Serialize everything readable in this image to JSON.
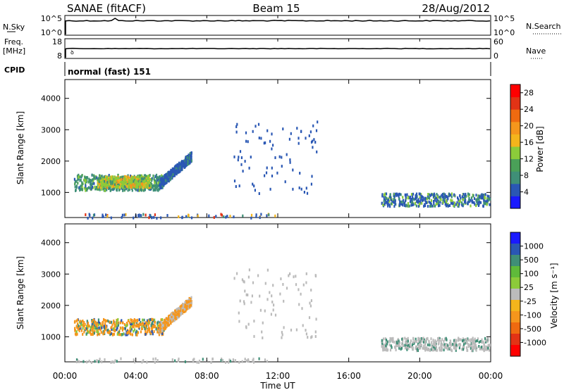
{
  "header": {
    "station": "SANAE (fitACF)",
    "beam": "Beam 15",
    "date": "28/Aug/2012"
  },
  "top_panels": {
    "nsky": {
      "label": "N.Sky",
      "right_label": "N.Search",
      "left_ticks": [
        "10^5",
        "10^0"
      ],
      "right_ticks": [
        "10^5",
        "10^0"
      ]
    },
    "freq": {
      "label_line1": "Freq.",
      "label_line2": "[MHz]",
      "right_label": "Nave",
      "left_ticks": [
        "18",
        "8"
      ],
      "right_ticks": [
        "60",
        "0"
      ]
    },
    "cpid": {
      "label": "CPID",
      "value": "normal (fast) 151"
    }
  },
  "colors": {
    "power_scale": [
      "#1a1aff",
      "#2a57b4",
      "#3f8f77",
      "#4aa058",
      "#8ccb3a",
      "#f4b51c",
      "#f5961c",
      "#ef6a10",
      "#e23315",
      "#ff0000"
    ],
    "velocity_scale": [
      "#1a1aff",
      "#2a57b4",
      "#3f8f77",
      "#5fba3a",
      "#8ccb3a",
      "#bbbbbb",
      "#f4b51c",
      "#f5961c",
      "#ef6a10",
      "#e23315",
      "#ff0000"
    ]
  },
  "chart_data": [
    {
      "type": "heatmap",
      "name": "power",
      "ylabel": "Slant Range [km]",
      "yticks": [
        "4000",
        "3000",
        "2000",
        "1000"
      ],
      "ylim": [
        200,
        4600
      ],
      "xlim_hours": [
        0,
        24
      ],
      "colorbar_label": "Power [dB]",
      "colorbar_ticks": [
        "28",
        "24",
        "20",
        "16",
        "12",
        "8",
        "4"
      ],
      "colorbar_range": [
        0,
        30
      ],
      "regions": [
        {
          "t0": 0.5,
          "t1": 5.6,
          "r0": 1100,
          "r1": 1600,
          "value": 6,
          "mix": [
            10,
            14,
            4
          ]
        },
        {
          "t0": 1.8,
          "t1": 4.8,
          "r0": 1200,
          "r1": 1550,
          "value": 12,
          "mix": [
            6,
            16,
            20
          ]
        },
        {
          "t0": 5.3,
          "t1": 7.1,
          "r0": 1300,
          "r1": 2400,
          "value": 5,
          "mix": [
            8,
            4
          ]
        },
        {
          "t0": 9.5,
          "t1": 14.2,
          "r0": 1000,
          "r1": 3300,
          "value": 4,
          "sparse": true
        },
        {
          "t0": 17.8,
          "t1": 24,
          "r0": 600,
          "r1": 1000,
          "value": 4,
          "mix": [
            6,
            12
          ]
        },
        {
          "t0": 0.5,
          "t1": 12,
          "r0": 200,
          "r1": 350,
          "value": 4,
          "sparse": true,
          "mix": [
            8,
            16,
            24
          ]
        }
      ]
    },
    {
      "type": "heatmap",
      "name": "velocity",
      "ylabel": "Slant Range [km]",
      "yticks": [
        "4000",
        "3000",
        "2000",
        "1000"
      ],
      "ylim": [
        200,
        4600
      ],
      "xlim_hours": [
        0,
        24
      ],
      "xticks": [
        "00:00",
        "04:00",
        "08:00",
        "12:00",
        "16:00",
        "20:00",
        "00:00"
      ],
      "xlabel": "Time UT",
      "colorbar_label": "Velocity [m s^-1]",
      "colorbar_ticks": [
        "1000",
        "500",
        "100",
        "25",
        "-25",
        "-100",
        "-500",
        "-1000"
      ],
      "regions": [
        {
          "t0": 0.5,
          "t1": 5.6,
          "r0": 1100,
          "r1": 1600,
          "value": -100,
          "mix": [
            100,
            25,
            500
          ]
        },
        {
          "t0": 5.3,
          "t1": 7.1,
          "r0": 1300,
          "r1": 2400,
          "value": -100,
          "mix": [
            -25
          ]
        },
        {
          "t0": 9.5,
          "t1": 14.2,
          "r0": 1000,
          "r1": 3300,
          "value": -25,
          "sparse": true,
          "mix": [
            0
          ]
        },
        {
          "t0": 17.8,
          "t1": 24,
          "r0": 600,
          "r1": 1000,
          "value": 0,
          "mix": [
            100,
            -25
          ]
        },
        {
          "t0": 0.5,
          "t1": 12,
          "r0": 200,
          "r1": 350,
          "value": -25,
          "sparse": true,
          "mix": [
            100,
            0
          ]
        }
      ]
    }
  ],
  "colorbars": {
    "power_label": "Power [dB]",
    "velocity_label": "Velocity [m s⁻¹]"
  }
}
